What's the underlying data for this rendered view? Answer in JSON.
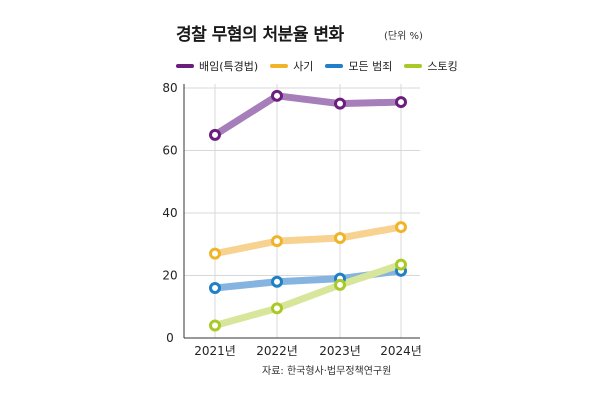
{
  "chart_data": {
    "type": "line",
    "title": "경찰 무혐의 처분율 변화",
    "unit": "(단위 %)",
    "source": "자료: 한국형사·법무정책연구원",
    "categories": [
      "2021년",
      "2022년",
      "2023년",
      "2024년"
    ],
    "ylim": [
      0,
      80
    ],
    "yticks": [
      0,
      20,
      40,
      60,
      80
    ],
    "grid": true,
    "legend_position": "top",
    "series": [
      {
        "name": "배임(특경법)",
        "values": [
          65,
          77.5,
          75,
          75.5
        ],
        "color": "#6b1f7c",
        "line_color": "#a67fba"
      },
      {
        "name": "사기",
        "values": [
          27,
          31,
          32,
          35.5
        ],
        "color": "#f0b429",
        "line_color": "#f7d290"
      },
      {
        "name": "모든 범죄",
        "values": [
          16,
          18,
          19,
          21.5
        ],
        "color": "#1f7fc7",
        "line_color": "#84b4df"
      },
      {
        "name": "스토킹",
        "values": [
          4,
          9.5,
          17,
          23.5
        ],
        "color": "#a9c927",
        "line_color": "#d7e69a"
      }
    ]
  }
}
